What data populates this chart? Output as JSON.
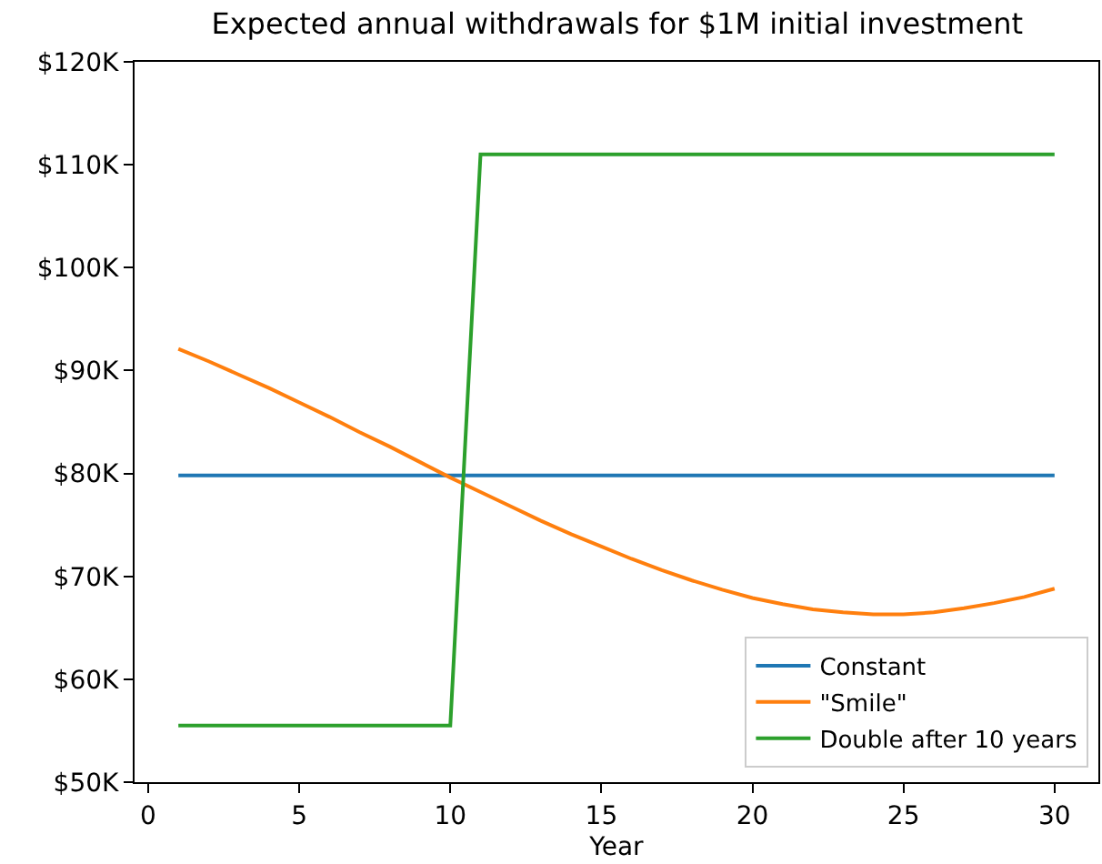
{
  "chart_data": {
    "type": "line",
    "title": "Expected annual withdrawals for $1M initial investment",
    "xlabel": "Year",
    "x": [
      1,
      2,
      3,
      4,
      5,
      6,
      7,
      8,
      9,
      10,
      11,
      12,
      13,
      14,
      15,
      16,
      17,
      18,
      19,
      20,
      21,
      22,
      23,
      24,
      25,
      26,
      27,
      28,
      29,
      30
    ],
    "series": [
      {
        "name": "Constant",
        "color": "#1f77b4",
        "values": [
          79.8,
          79.8,
          79.8,
          79.8,
          79.8,
          79.8,
          79.8,
          79.8,
          79.8,
          79.8,
          79.8,
          79.8,
          79.8,
          79.8,
          79.8,
          79.8,
          79.8,
          79.8,
          79.8,
          79.8,
          79.8,
          79.8,
          79.8,
          79.8,
          79.8,
          79.8,
          79.8,
          79.8,
          79.8,
          79.8
        ]
      },
      {
        "name": "\"Smile\"",
        "color": "#ff7f0e",
        "values": [
          92.1,
          90.9,
          89.6,
          88.3,
          86.9,
          85.5,
          84.0,
          82.6,
          81.1,
          79.6,
          78.2,
          76.8,
          75.4,
          74.1,
          72.9,
          71.7,
          70.6,
          69.6,
          68.7,
          67.9,
          67.3,
          66.8,
          66.5,
          66.3,
          66.3,
          66.5,
          66.9,
          67.4,
          68.0,
          68.8
        ]
      },
      {
        "name": "Double after 10 years",
        "color": "#2ca02c",
        "values": [
          55.5,
          55.5,
          55.5,
          55.5,
          55.5,
          55.5,
          55.5,
          55.5,
          55.5,
          55.5,
          111,
          111,
          111,
          111,
          111,
          111,
          111,
          111,
          111,
          111,
          111,
          111,
          111,
          111,
          111,
          111,
          111,
          111,
          111,
          111
        ]
      }
    ],
    "xlim": [
      -0.45,
      31.45
    ],
    "xticks": [
      0,
      5,
      10,
      15,
      20,
      25,
      30
    ],
    "ylim": [
      50,
      120
    ],
    "yticks": [
      {
        "value": 50,
        "label": "$50K"
      },
      {
        "value": 60,
        "label": "$60K"
      },
      {
        "value": 70,
        "label": "$70K"
      },
      {
        "value": 80,
        "label": "$80K"
      },
      {
        "value": 90,
        "label": "$90K"
      },
      {
        "value": 100,
        "label": "$100K"
      },
      {
        "value": 110,
        "label": "$110K"
      },
      {
        "value": 120,
        "label": "$120K"
      }
    ],
    "legend": "bottom right",
    "marker": "none",
    "line_style": "solid"
  }
}
